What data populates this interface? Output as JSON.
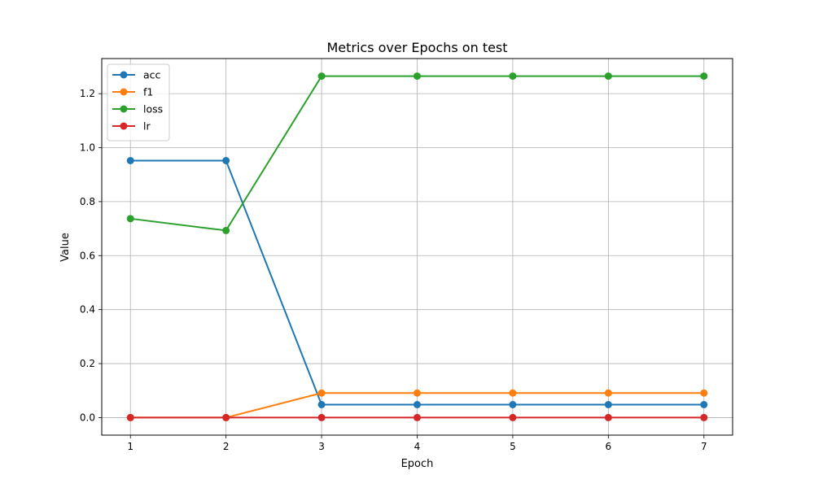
{
  "chart_data": {
    "type": "line",
    "title": "Metrics over Epochs on test",
    "xlabel": "Epoch",
    "ylabel": "Value",
    "x": [
      1,
      2,
      3,
      4,
      5,
      6,
      7
    ],
    "xlim": [
      0.7,
      7.3
    ],
    "ylim": [
      -0.065,
      1.33
    ],
    "xticks": [
      1,
      2,
      3,
      4,
      5,
      6,
      7
    ],
    "yticks": [
      0.0,
      0.2,
      0.4,
      0.6,
      0.8,
      1.0,
      1.2
    ],
    "ytick_labels": [
      "0.0",
      "0.2",
      "0.4",
      "0.6",
      "0.8",
      "1.0",
      "1.2"
    ],
    "grid": true,
    "legend_position": "top-left",
    "series": [
      {
        "name": "acc",
        "color": "#1f77b4",
        "values": [
          0.952,
          0.952,
          0.048,
          0.048,
          0.048,
          0.048,
          0.048
        ]
      },
      {
        "name": "f1",
        "color": "#ff7f0e",
        "values": [
          0.0,
          0.0,
          0.091,
          0.091,
          0.091,
          0.091,
          0.091
        ]
      },
      {
        "name": "loss",
        "color": "#2ca02c",
        "values": [
          0.737,
          0.693,
          1.265,
          1.265,
          1.265,
          1.265,
          1.265
        ]
      },
      {
        "name": "lr",
        "color": "#d62728",
        "values": [
          0.0,
          0.0,
          0.0,
          0.0,
          0.0,
          0.0,
          0.0
        ]
      }
    ]
  }
}
